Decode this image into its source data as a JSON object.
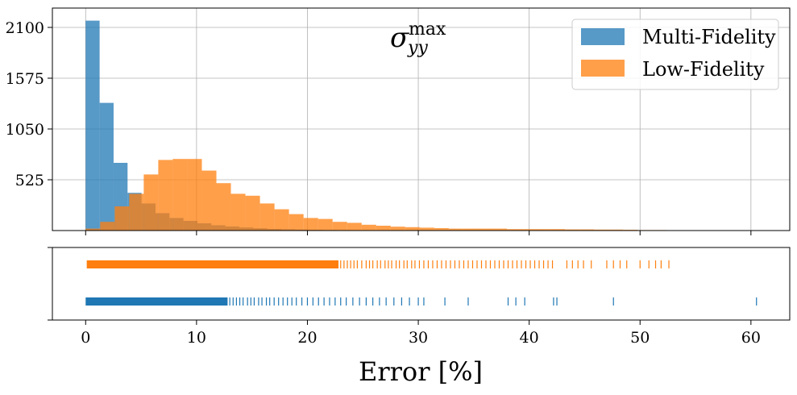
{
  "chart_data": [
    {
      "type": "bar",
      "subtype": "histogram",
      "annotation": {
        "symbol": "σ",
        "subscript": "yy",
        "superscript": "max"
      },
      "xlim": [
        -3,
        63.5
      ],
      "ylim": [
        0,
        2300
      ],
      "yticks": [
        525,
        1050,
        1575,
        2100
      ],
      "grid": true,
      "legend": {
        "position": "top-right",
        "entries": [
          "Multi-Fidelity",
          "Low-Fidelity"
        ]
      },
      "colors": {
        "Multi-Fidelity": "#1f77b4",
        "Low-Fidelity": "#ff7f0e"
      },
      "alpha": 0.75,
      "series": [
        {
          "name": "Multi-Fidelity",
          "bin_start": 0.0,
          "bin_width": 1.26,
          "values": [
            2170,
            1320,
            700,
            390,
            280,
            180,
            130,
            100,
            75,
            55,
            42,
            32,
            24,
            17,
            13,
            10,
            8,
            6,
            5,
            4,
            3,
            2,
            2,
            2,
            1,
            1,
            1,
            1,
            1,
            1,
            1,
            1,
            0,
            0,
            0,
            0,
            0,
            0,
            0,
            1,
            0,
            0,
            0,
            0,
            0,
            0,
            1
          ]
        },
        {
          "name": "Low-Fidelity",
          "bin_start": 0.0,
          "bin_width": 1.31,
          "values": [
            20,
            90,
            250,
            380,
            580,
            730,
            740,
            740,
            620,
            490,
            380,
            360,
            280,
            220,
            170,
            130,
            120,
            90,
            80,
            60,
            50,
            40,
            35,
            30,
            25,
            20,
            20,
            20,
            20,
            15,
            15,
            15,
            15,
            12,
            12,
            10,
            10,
            8,
            5,
            5
          ]
        }
      ]
    },
    {
      "type": "scatter",
      "subtype": "rug",
      "xlim": [
        -3,
        63.5
      ],
      "xticks": [
        0,
        10,
        20,
        30,
        40,
        50,
        60
      ],
      "xlabel": "Error [%]",
      "series": [
        {
          "name": "Low-Fidelity",
          "dense_ranges": [
            [
              0.1,
              22.8
            ]
          ],
          "points": [
            23.0,
            23.3,
            23.6,
            23.9,
            24.2,
            24.5,
            24.9,
            25.3,
            25.6,
            25.9,
            26.3,
            26.6,
            27.0,
            27.3,
            27.6,
            28.0,
            28.3,
            28.7,
            29.0,
            29.4,
            29.7,
            30.1,
            30.5,
            30.9,
            31.3,
            31.7,
            32.1,
            32.5,
            32.9,
            33.3,
            33.7,
            34.1,
            34.5,
            34.9,
            35.3,
            35.7,
            36.1,
            36.5,
            36.9,
            37.3,
            37.7,
            38.1,
            38.5,
            38.9,
            39.3,
            39.7,
            40.1,
            40.5,
            40.9,
            41.3,
            41.7,
            42.1,
            43.4,
            43.9,
            44.4,
            44.9,
            45.6,
            47.0,
            47.6,
            48.2,
            48.8,
            50.0,
            50.8,
            51.4,
            51.9,
            52.6
          ]
        },
        {
          "name": "Multi-Fidelity",
          "dense_ranges": [
            [
              0.0,
              12.8
            ]
          ],
          "points": [
            13.0,
            13.3,
            13.6,
            13.9,
            14.2,
            14.6,
            14.9,
            15.2,
            15.6,
            15.9,
            16.3,
            16.6,
            17.0,
            17.4,
            17.8,
            18.2,
            18.6,
            19.0,
            19.5,
            20.0,
            20.5,
            21.0,
            21.5,
            22.0,
            22.5,
            23.0,
            23.5,
            24.1,
            24.7,
            25.3,
            25.9,
            26.5,
            27.1,
            27.8,
            28.5,
            29.2,
            30.0,
            30.5,
            32.4,
            34.5,
            38.1,
            38.8,
            39.6,
            42.2,
            42.5,
            47.6,
            60.5
          ]
        }
      ]
    }
  ]
}
